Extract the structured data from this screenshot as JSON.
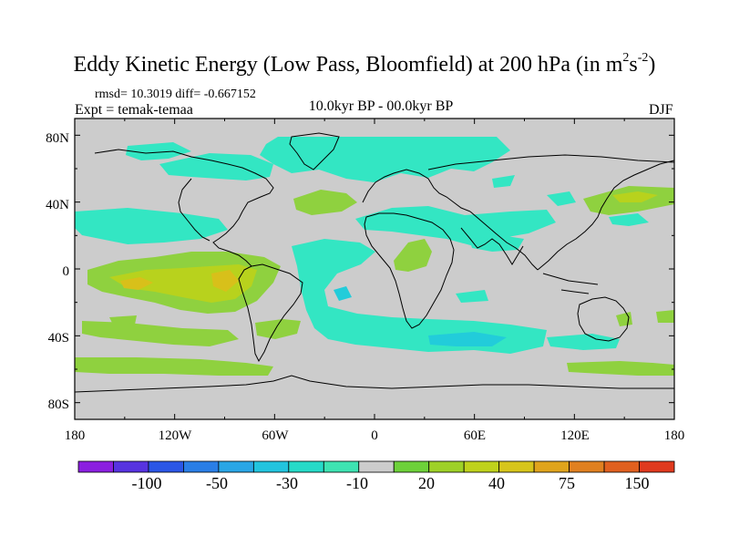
{
  "header": {
    "title_main": "Eddy Kinetic Energy (Low Pass, Bloomfield) at 200 hPa (in m",
    "title_sup1": "2",
    "title_s": "s",
    "title_sup2": "-2",
    "title_close": ")",
    "stats": "rmsd= 10.3019 diff= -0.667152",
    "experiment": "Expt = temak-temaa",
    "period": "10.0kyr BP - 00.0kyr BP",
    "season": "DJF"
  },
  "map_data": {
    "type": "filled-contour-map",
    "projection": "cylindrical-equidistant",
    "lon_range": [
      -180,
      180
    ],
    "lat_range": [
      -90,
      90
    ],
    "y_ticks": [
      "80N",
      "40N",
      "0",
      "40S",
      "80S"
    ],
    "x_ticks": [
      "180",
      "120W",
      "60W",
      "0",
      "60E",
      "120E",
      "180"
    ],
    "background_color": "#cccccc",
    "region_colors": {
      "neg_light": "#33e6c3",
      "neg_mid": "#22ccda",
      "pos_light": "#8fd13f",
      "pos_mid": "#b8d21d",
      "pos_strong": "#d8c01a"
    }
  },
  "colorbar": {
    "colors": [
      "#8b1fe0",
      "#5733e0",
      "#2b56e6",
      "#2a7ee6",
      "#2aa6e6",
      "#22c4de",
      "#26dac8",
      "#3ee3b2",
      "#cccccc",
      "#6dd13a",
      "#9ed127",
      "#bfd21c",
      "#d7c51b",
      "#e0a41c",
      "#e08020",
      "#e0601f",
      "#e03a1e"
    ],
    "labels": [
      "-100",
      "-50",
      "-30",
      "-10",
      "20",
      "40",
      "75",
      "150"
    ]
  }
}
